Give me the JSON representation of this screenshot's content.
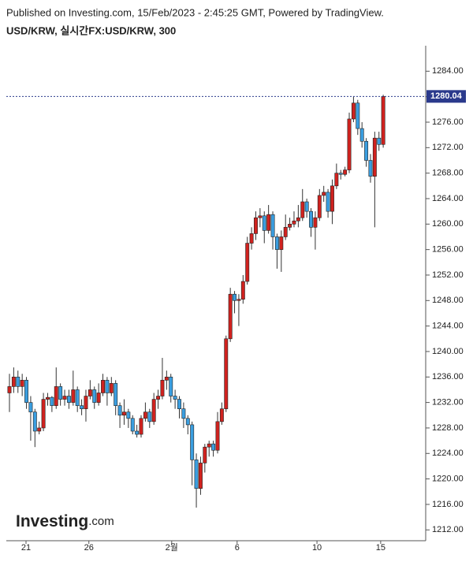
{
  "header": {
    "published": "Published on Investing.com, 15/Feb/2023 - 2:45:25 GMT, Powered by TradingView.",
    "symbol": "USD/KRW, 실시간FX:USD/KRW, 300"
  },
  "logo": {
    "name": "Investing",
    "suffix": ".com"
  },
  "chart_data": {
    "type": "candlestick",
    "up_color": "#d0221f",
    "down_color": "#3a9ee0",
    "xlim": [
      -0.74,
      98
    ],
    "xticks": [
      {
        "value": 3.9,
        "label": "21"
      },
      {
        "value": 18.7,
        "label": "26"
      },
      {
        "value": 38.2,
        "label": "2월"
      },
      {
        "value": 53.6,
        "label": "6"
      },
      {
        "value": 72.4,
        "label": "10"
      },
      {
        "value": 87.4,
        "label": "15"
      }
    ],
    "ylim": [
      1210.3,
      1288
    ],
    "yticks": [
      {
        "value": 1212,
        "label": "1212.00"
      },
      {
        "value": 1216,
        "label": "1216.00"
      },
      {
        "value": 1220,
        "label": "1220.00"
      },
      {
        "value": 1224,
        "label": "1224.00"
      },
      {
        "value": 1228,
        "label": "1228.00"
      },
      {
        "value": 1232,
        "label": "1232.00"
      },
      {
        "value": 1236,
        "label": "1236.00"
      },
      {
        "value": 1240,
        "label": "1240.00"
      },
      {
        "value": 1244,
        "label": "1244.00"
      },
      {
        "value": 1248,
        "label": "1248.00"
      },
      {
        "value": 1252,
        "label": "1252.00"
      },
      {
        "value": 1256,
        "label": "1256.00"
      },
      {
        "value": 1260,
        "label": "1260.00"
      },
      {
        "value": 1264,
        "label": "1264.00"
      },
      {
        "value": 1268,
        "label": "1268.00"
      },
      {
        "value": 1272,
        "label": "1272.00"
      },
      {
        "value": 1276,
        "label": "1276.00"
      },
      {
        "value": 1280,
        "label": "1280.00"
      },
      {
        "value": 1284,
        "label": "1284.00"
      }
    ],
    "last_price": 1280.04,
    "open": [
      1233.5,
      1234.5,
      1236,
      1234.5,
      1235.5,
      1232,
      1230.5,
      1227.5,
      1228,
      1232.5,
      1232.8,
      1231.5,
      1234.5,
      1232.5,
      1233,
      1232,
      1234,
      1231.5,
      1231,
      1233,
      1234,
      1232,
      1233.5,
      1235.5,
      1233.5,
      1235,
      1231.5,
      1230,
      1230.5,
      1229.5,
      1227.5,
      1227,
      1229.5,
      1230.5,
      1229,
      1232.5,
      1233,
      1235.5,
      1236,
      1233,
      1232.5,
      1231,
      1229.5,
      1228.5,
      1223,
      1218.5,
      1222.5,
      1225,
      1225.5,
      1224.5,
      1229,
      1231,
      1242,
      1249,
      1248,
      1248.2,
      1251,
      1257,
      1258.5,
      1261,
      1261.3,
      1259,
      1261.5,
      1258,
      1256,
      1258,
      1259.5,
      1260,
      1260.5,
      1261,
      1263.5,
      1262,
      1259.5,
      1261,
      1264.5,
      1265,
      1262,
      1266,
      1268,
      1267.8,
      1268.5,
      1276.5,
      1279,
      1275,
      1273,
      1270,
      1267.5,
      1273.5,
      1272.5
    ],
    "high": [
      1236.5,
      1237.5,
      1237,
      1236.5,
      1236,
      1233,
      1231,
      1229,
      1233.5,
      1233.5,
      1233,
      1237.5,
      1235,
      1234,
      1234,
      1237,
      1234.5,
      1232.5,
      1234,
      1235.5,
      1234.5,
      1235,
      1236.5,
      1236,
      1236,
      1235.5,
      1232,
      1232.5,
      1231,
      1230,
      1228.5,
      1230,
      1232,
      1231,
      1233.5,
      1234,
      1239,
      1237,
      1236.5,
      1234,
      1233,
      1232,
      1230,
      1229,
      1224,
      1223.5,
      1225.5,
      1226,
      1226,
      1230.5,
      1232,
      1242.5,
      1250,
      1249.5,
      1249,
      1252,
      1258,
      1259.5,
      1262,
      1262.5,
      1262,
      1263,
      1262,
      1258.5,
      1259,
      1261.5,
      1261,
      1262,
      1263,
      1265.5,
      1264,
      1262.5,
      1262,
      1265.5,
      1266,
      1265.5,
      1267,
      1269.5,
      1268.5,
      1269,
      1277.5,
      1280,
      1279.5,
      1276,
      1273.5,
      1271,
      1274.5,
      1274.5,
      1280.3
    ],
    "low": [
      1230.5,
      1233.5,
      1233.5,
      1233,
      1231,
      1226,
      1225,
      1227,
      1227.5,
      1231.5,
      1230.5,
      1231,
      1231.5,
      1231.5,
      1231,
      1231.5,
      1230.5,
      1230,
      1229,
      1232.5,
      1231,
      1231.5,
      1233,
      1231.5,
      1233,
      1230,
      1228,
      1228.5,
      1228,
      1227,
      1226.5,
      1226.5,
      1229,
      1228,
      1228.5,
      1231,
      1232.5,
      1234,
      1232,
      1231,
      1229.5,
      1228,
      1227,
      1219,
      1215.5,
      1217.5,
      1221,
      1223.5,
      1223.5,
      1224,
      1228.5,
      1230.5,
      1241.5,
      1246,
      1244,
      1247.5,
      1250.5,
      1256,
      1257.5,
      1259.5,
      1257,
      1258.5,
      1256,
      1253,
      1252.5,
      1257.5,
      1259,
      1259.5,
      1259.5,
      1260.5,
      1261,
      1258,
      1256,
      1260.5,
      1263.5,
      1261,
      1260,
      1265.5,
      1267,
      1267.5,
      1268,
      1276,
      1274,
      1272,
      1269,
      1266.5,
      1259.5,
      1271.5,
      1272
    ],
    "close": [
      1234.5,
      1236,
      1234.5,
      1235.5,
      1232,
      1230.5,
      1227.5,
      1228,
      1232.5,
      1232.8,
      1231.5,
      1234.5,
      1232.5,
      1233,
      1232,
      1234,
      1231.5,
      1231,
      1233,
      1234,
      1232,
      1233.5,
      1235.5,
      1233.5,
      1235,
      1231.5,
      1230,
      1230.5,
      1229.5,
      1227.5,
      1227,
      1229.5,
      1230.5,
      1229,
      1232.5,
      1233,
      1235.5,
      1236,
      1233,
      1232.5,
      1231,
      1229.5,
      1228.5,
      1223,
      1218.5,
      1222.5,
      1225,
      1225.5,
      1224.5,
      1229,
      1231,
      1242,
      1249,
      1248,
      1248.2,
      1251,
      1257,
      1258.5,
      1261,
      1261.3,
      1259,
      1261.5,
      1258,
      1256,
      1258,
      1259.5,
      1260,
      1260.5,
      1261,
      1263.5,
      1262,
      1259.5,
      1261,
      1264.5,
      1265,
      1262,
      1266,
      1268,
      1267.8,
      1268.5,
      1276.5,
      1279,
      1275,
      1273,
      1270,
      1267.5,
      1273.5,
      1272.5,
      1280.04
    ]
  }
}
